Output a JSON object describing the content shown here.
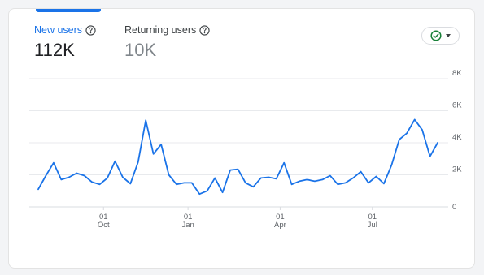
{
  "metrics": {
    "new_users": {
      "label": "New users",
      "value": "112K"
    },
    "returning_users": {
      "label": "Returning users",
      "value": "10K"
    }
  },
  "colors": {
    "accent": "#1a73e8",
    "status_green": "#188038",
    "grid": "#e8eaed"
  },
  "icons": {
    "help": "help-circle-icon",
    "status": "check-circle-icon",
    "dropdown": "caret-down-icon"
  },
  "chart_data": {
    "type": "line",
    "series": [
      {
        "name": "New users",
        "values": [
          1100,
          1950,
          2750,
          1700,
          1850,
          2100,
          1950,
          1550,
          1400,
          1800,
          2850,
          1850,
          1450,
          2800,
          5400,
          3300,
          3900,
          2000,
          1400,
          1500,
          1500,
          800,
          1000,
          1800,
          900,
          2300,
          2350,
          1500,
          1250,
          1800,
          1850,
          1750,
          2750,
          1400,
          1600,
          1700,
          1600,
          1700,
          1950,
          1400,
          1500,
          1800,
          2200,
          1500,
          1900,
          1450,
          2600,
          4200,
          4600,
          5450,
          4800,
          3150,
          4000
        ]
      }
    ],
    "x_ticks": [
      {
        "index": 8.5,
        "line1": "01",
        "line2": "Oct"
      },
      {
        "index": 19.5,
        "line1": "01",
        "line2": "Jan"
      },
      {
        "index": 31.5,
        "line1": "01",
        "line2": "Apr"
      },
      {
        "index": 43.5,
        "line1": "01",
        "line2": "Jul"
      }
    ],
    "y_ticks": [
      {
        "value": 8000,
        "label": "8K"
      },
      {
        "value": 6000,
        "label": "6K"
      },
      {
        "value": 4000,
        "label": "4K"
      },
      {
        "value": 2000,
        "label": "2K"
      },
      {
        "value": 0,
        "label": "0"
      }
    ],
    "ylim": [
      0,
      8000
    ],
    "grid": true
  }
}
